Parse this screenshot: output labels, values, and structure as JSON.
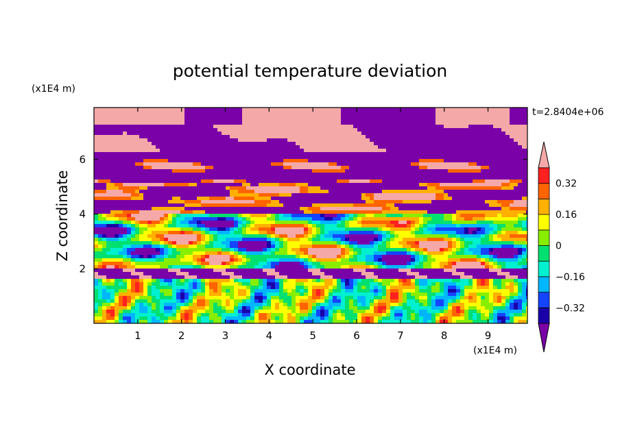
{
  "chart_data": {
    "type": "heatmap",
    "title": "potential temperature deviation",
    "time_label": "t=2.8404e+06",
    "xlabel": "X coordinate",
    "ylabel": "Z coordinate",
    "x_unit": "(x1E4 m)",
    "y_unit": "(x1E4 m)",
    "xlim": [
      0,
      9.9
    ],
    "ylim": [
      0,
      7.9
    ],
    "x_ticks": [
      "1",
      "2",
      "3",
      "4",
      "5",
      "6",
      "7",
      "8",
      "9"
    ],
    "y_ticks": [
      "2",
      "4",
      "6"
    ],
    "x_tick_values": [
      1,
      2,
      3,
      4,
      5,
      6,
      7,
      8,
      9
    ],
    "y_tick_values": [
      2,
      4,
      6
    ],
    "colorbar": {
      "tick_labels": [
        "0.32",
        "0.16",
        "0",
        "−0.16",
        "−0.32"
      ],
      "tick_values": [
        0.32,
        0.16,
        0,
        -0.16,
        -0.32
      ],
      "levels": [
        -0.4,
        -0.32,
        -0.24,
        -0.16,
        -0.08,
        0,
        0.08,
        0.16,
        0.24,
        0.32,
        0.4
      ],
      "colors": [
        "#1a00a8",
        "#1444ff",
        "#00b7ff",
        "#00f0d0",
        "#00e070",
        "#88ee00",
        "#ffff00",
        "#ffb000",
        "#ff6400",
        "#ff2020"
      ],
      "under_color": "#7a00a8",
      "over_color": "#f5a8a8"
    },
    "bands": [
      {
        "z_range": [
          7.2,
          7.9
        ],
        "dominant": "over"
      },
      {
        "z_range": [
          6.3,
          7.2
        ],
        "dominant": "mixed-over-under"
      },
      {
        "z_range": [
          5.2,
          6.3
        ],
        "dominant": "under"
      },
      {
        "z_range": [
          4.0,
          5.2
        ],
        "dominant": "mixed-warm"
      },
      {
        "z_range": [
          2.0,
          4.0
        ],
        "dominant": "mixed-cool"
      },
      {
        "z_range": [
          1.6,
          2.0
        ],
        "dominant": "under"
      },
      {
        "z_range": [
          0.0,
          1.6
        ],
        "dominant": "turbulent-neutral"
      }
    ]
  }
}
